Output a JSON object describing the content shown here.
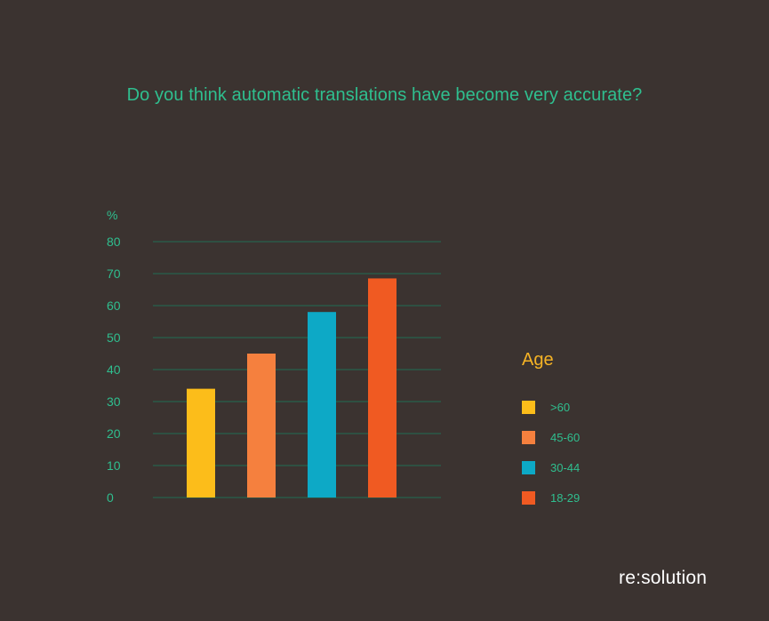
{
  "chart_data": {
    "type": "bar",
    "title": "Do you think automatic translations have become very accurate?",
    "ylabel": "%",
    "xlabel": "",
    "ylim": [
      0,
      80
    ],
    "yticks": [
      0,
      10,
      20,
      30,
      40,
      50,
      60,
      70,
      80
    ],
    "grid": true,
    "legend_title": "Age",
    "legend_position": "right",
    "categories": [
      ">60",
      "45-60",
      "30-44",
      "18-29"
    ],
    "values": [
      34,
      45,
      58,
      68.5
    ],
    "colors": [
      "#fcbd1a",
      "#f5803e",
      "#0da9c6",
      "#f05a22"
    ]
  },
  "brand": {
    "name": "re:solution"
  },
  "colors": {
    "background": "#3b3330",
    "title": "#2fbf8f",
    "gridline": "#2a5a48",
    "legend_title": "#f5b325"
  }
}
